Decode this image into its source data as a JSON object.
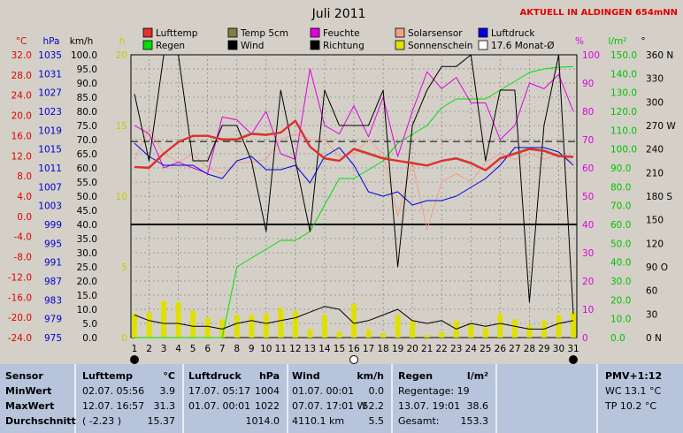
{
  "chart_data": {
    "type": "line",
    "title": "Juli 2011",
    "station_label": "AKTUELL IN ALDINGEN 654mNN",
    "x": [
      1,
      2,
      3,
      4,
      5,
      6,
      7,
      8,
      9,
      10,
      11,
      12,
      13,
      14,
      15,
      16,
      17,
      18,
      19,
      20,
      21,
      22,
      23,
      24,
      25,
      26,
      27,
      28,
      29,
      30,
      31
    ],
    "axis_headers": {
      "temp": "°C",
      "pressure": "hPa",
      "wind": "km/h",
      "hours": "h",
      "humidity": "%",
      "rain": "l/m²",
      "direction": "°"
    },
    "axes": {
      "temp": {
        "label": "°C",
        "ylim": [
          -24,
          36
        ],
        "ticks": [
          "32.0",
          "28.0",
          "24.0",
          "20.0",
          "16.0",
          "12.0",
          "8.0",
          "4.0",
          "0.0",
          "-4.0",
          "-8.0",
          "-12.0",
          "-16.0",
          "-20.0",
          "-24.0"
        ]
      },
      "pressure": {
        "label": "hPa",
        "ylim": [
          975,
          1039
        ],
        "ticks": [
          "1035",
          "1031",
          "1027",
          "1023",
          "1019",
          "1015",
          "1011",
          "1007",
          "1003",
          "999",
          "995",
          "991",
          "987",
          "983",
          "979",
          "975"
        ]
      },
      "wind": {
        "label": "km/h",
        "ylim": [
          0,
          100
        ],
        "ticks": [
          "100.0",
          "95.0",
          "90.0",
          "85.0",
          "80.0",
          "75.0",
          "70.0",
          "65.0",
          "60.0",
          "55.0",
          "50.0",
          "45.0",
          "40.0",
          "35.0",
          "30.0",
          "25.0",
          "20.0",
          "15.0",
          "10.0",
          "5.0",
          "0.0"
        ]
      },
      "hours": {
        "label": "h",
        "ylim": [
          0,
          20
        ],
        "ticks": [
          "20",
          "15",
          "10",
          "5",
          "0"
        ]
      },
      "humidity": {
        "label": "%",
        "ylim": [
          0,
          100
        ],
        "ticks": [
          "100",
          "90",
          "80",
          "70",
          "60",
          "50",
          "40",
          "30",
          "20",
          "10",
          "0"
        ]
      },
      "rain": {
        "label": "l/m²",
        "ylim": [
          0,
          160
        ],
        "ticks": [
          "150.0",
          "140.0",
          "130.0",
          "120.0",
          "110.0",
          "100.0",
          "90.0",
          "80.0",
          "70.0",
          "60.0",
          "50.0",
          "40.0",
          "30.0",
          "20.0",
          "10.0",
          "0.0"
        ]
      },
      "direction": {
        "label": "°",
        "ylim": [
          0,
          360
        ],
        "ticks": [
          "360 N",
          "330",
          "300",
          "270 W",
          "240",
          "210",
          "180 S",
          "150",
          "120",
          "90 O",
          "60",
          "30",
          "0 N"
        ]
      }
    },
    "legend": [
      {
        "name": "Lufttemp",
        "color": "#e03030"
      },
      {
        "name": "Temp 5cm",
        "color": "#808040"
      },
      {
        "name": "Feuchte",
        "color": "#e000e0"
      },
      {
        "name": "Solarsensor",
        "color": "#f0a088"
      },
      {
        "name": "Luftdruck",
        "color": "#0000e0"
      },
      {
        "name": "Regen",
        "color": "#00e000"
      },
      {
        "name": "Wind",
        "color": "#000000"
      },
      {
        "name": "Richtung",
        "color": "#000000"
      },
      {
        "name": "Sonnenschein",
        "color": "#e0e000"
      },
      {
        "name": "17.6 Monat-Ø",
        "color": "#ffffff"
      }
    ],
    "series": [
      {
        "name": "Lufttemp",
        "axis": "temp",
        "color": "#e03030",
        "values": [
          12.2,
          12.0,
          15.0,
          17.5,
          18.8,
          18.8,
          18.0,
          18.0,
          19.2,
          19.0,
          19.5,
          22.0,
          16.5,
          14.0,
          13.5,
          16.0,
          15.0,
          14.0,
          13.5,
          13.0,
          12.5,
          13.5,
          14.0,
          13.0,
          11.5,
          14.0,
          15.0,
          16.0,
          15.6,
          14.5,
          14.3
        ]
      },
      {
        "name": "Temp 5cm",
        "axis": "temp",
        "color": "#808040",
        "values": [
          12.2,
          12.2,
          15.2,
          17.5,
          18.6,
          18.8,
          18.2,
          18.2,
          19.4,
          19.2,
          19.6,
          22.2,
          16.6,
          14.2,
          13.6,
          16.2,
          15.2,
          14.2,
          13.6,
          13.2,
          12.6,
          13.6,
          14.2,
          13.2,
          11.6,
          14.2,
          15.2,
          16.2,
          15.8,
          14.7,
          14.5
        ]
      },
      {
        "name": "Feuchte",
        "axis": "humidity",
        "color": "#e000e0",
        "values": [
          75,
          72,
          60,
          62,
          60,
          58,
          78,
          77,
          72,
          80,
          65,
          63,
          95,
          75,
          72,
          82,
          71,
          85,
          64,
          80,
          94,
          88,
          92,
          83,
          83,
          70,
          75,
          90,
          88,
          93,
          80
        ]
      },
      {
        "name": "Solarsensor",
        "axis": "humidity",
        "color": "#f0a088",
        "values": [
          63,
          74,
          65,
          62,
          65,
          60,
          58,
          62,
          62,
          63,
          70,
          72,
          70,
          70,
          64,
          65,
          70,
          65,
          43,
          62,
          38,
          55,
          58,
          55,
          62,
          65,
          63,
          65,
          63,
          65,
          62
        ]
      },
      {
        "name": "Luftdruck",
        "axis": "pressure",
        "color": "#0000e0",
        "values": [
          1019,
          1016,
          1014,
          1014,
          1014,
          1012,
          1011,
          1015,
          1016,
          1013,
          1013,
          1014,
          1010,
          1016,
          1018,
          1014,
          1008,
          1007,
          1008,
          1005,
          1006,
          1006,
          1007,
          1009,
          1011,
          1014,
          1018,
          1018,
          1018,
          1017,
          1014
        ]
      },
      {
        "name": "Regen",
        "axis": "rain",
        "color": "#00e000",
        "values": [
          0,
          0,
          0,
          0,
          0,
          0,
          0,
          40,
          45,
          50,
          55,
          55,
          60,
          75,
          90,
          90,
          95,
          100,
          110,
          115,
          120,
          130,
          135,
          135,
          135,
          140,
          145,
          150,
          152,
          153,
          153.3
        ]
      },
      {
        "name": "Wind",
        "axis": "wind",
        "color": "#000000",
        "values": [
          8,
          6,
          5,
          5,
          4,
          4,
          3,
          5,
          6,
          5,
          6,
          7,
          9,
          11,
          10,
          5,
          6,
          8,
          10,
          6,
          5,
          6,
          3,
          5,
          4,
          5,
          4,
          3,
          3,
          5,
          6
        ]
      },
      {
        "name": "Richtung",
        "axis": "direction",
        "color": "#000000",
        "values": [
          310,
          225,
          360,
          360,
          225,
          225,
          270,
          270,
          225,
          135,
          315,
          225,
          135,
          315,
          270,
          270,
          270,
          315,
          90,
          270,
          315,
          345,
          345,
          360,
          225,
          315,
          315,
          45,
          270,
          360,
          30
        ]
      },
      {
        "name": "Sonnenschein",
        "axis": "hours",
        "color": "#e0e000",
        "values": [
          1.7,
          1.8,
          2.6,
          2.5,
          1.9,
          1.4,
          1.3,
          1.6,
          1.6,
          1.7,
          2.1,
          1.9,
          0.6,
          1.6,
          0.4,
          2.4,
          0.6,
          0.3,
          1.6,
          1.2,
          0.2,
          0.4,
          1.2,
          0.9,
          0.7,
          1.7,
          1.3,
          0.9,
          1.2,
          1.6,
          1.8
        ]
      }
    ],
    "reference_lines": [
      {
        "name": "17.6 Monat-Ø",
        "axis": "temp",
        "value": 17.6,
        "style": "dashed"
      },
      {
        "name": "0 °C",
        "axis": "temp",
        "value": 0,
        "style": "solid"
      }
    ],
    "moon_phases": [
      {
        "day": 1,
        "phase": "new"
      },
      {
        "day": 16,
        "phase": "full"
      },
      {
        "day": 31,
        "phase": "new"
      }
    ],
    "grid": true
  },
  "summary": {
    "sensor": {
      "header": "Sensor",
      "rows": [
        "MinWert",
        "MaxWert",
        "Durchschnitt"
      ]
    },
    "lufttemp": {
      "header": "Lufttemp",
      "unit": "°C",
      "rows": [
        [
          "02.07.  05:56",
          "3.9"
        ],
        [
          "12.07.  16:57",
          "31.3"
        ],
        [
          "( -2.23 )",
          "15.37"
        ]
      ]
    },
    "luftdruck": {
      "header": "Luftdruck",
      "unit": "hPa",
      "rows": [
        [
          "17.07.  05:17",
          "1004"
        ],
        [
          "01.07.  00:01",
          "1022"
        ],
        [
          "",
          "1014.0"
        ]
      ]
    },
    "wind": {
      "header": "Wind",
      "unit": "km/h",
      "rows": [
        [
          "01.07.  00:01",
          "0.0"
        ],
        [
          "07.07.  17:01  W",
          "52.2"
        ],
        [
          "4110.1 km",
          "5.5"
        ]
      ]
    },
    "regen": {
      "header": "Regen",
      "unit": "l/m²",
      "rows": [
        [
          "Regentage: 19",
          ""
        ],
        [
          "13.07.  19:01",
          "38.6"
        ],
        [
          "Gesamt:",
          "153.3"
        ]
      ]
    },
    "pmv": {
      "header": "PMV+1:12",
      "rows": [
        "WC 13.1 °C",
        "TP 10.2 °C"
      ]
    }
  }
}
